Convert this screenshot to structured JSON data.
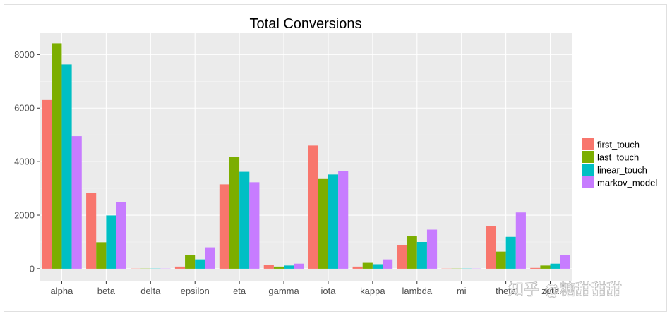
{
  "watermark": "知乎 @糖甜甜甜",
  "chart_data": {
    "type": "bar",
    "title": "Total Conversions",
    "xlabel": "",
    "ylabel": "",
    "categories": [
      "alpha",
      "beta",
      "delta",
      "epsilon",
      "eta",
      "gamma",
      "iota",
      "kappa",
      "lambda",
      "mi",
      "theta",
      "zeta"
    ],
    "ylim": [
      -450,
      8800
    ],
    "yticks": [
      0,
      2000,
      4000,
      6000,
      8000
    ],
    "ytick_labels": [
      "0",
      "2000",
      "4000",
      "6000",
      "8000"
    ],
    "grid": true,
    "legend_position": "right",
    "series": [
      {
        "name": "first_touch",
        "color": "#f8766d",
        "values": [
          6300,
          2820,
          5,
          80,
          3150,
          150,
          4600,
          80,
          880,
          5,
          1600,
          30
        ]
      },
      {
        "name": "last_touch",
        "color": "#7cae00",
        "values": [
          8420,
          990,
          5,
          510,
          4180,
          80,
          3350,
          220,
          1210,
          5,
          640,
          120
        ]
      },
      {
        "name": "linear_touch",
        "color": "#00bfc4",
        "values": [
          7630,
          1990,
          5,
          350,
          3620,
          120,
          3520,
          170,
          1000,
          5,
          1190,
          190
        ]
      },
      {
        "name": "markov_model",
        "color": "#c77cff",
        "values": [
          4950,
          2480,
          5,
          800,
          3230,
          190,
          3650,
          350,
          1460,
          5,
          2100,
          500
        ]
      }
    ]
  }
}
